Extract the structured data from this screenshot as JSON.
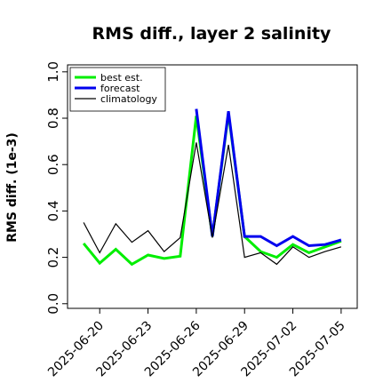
{
  "chart_data": {
    "type": "line",
    "title": "RMS diff., layer 2 salinity",
    "xlabel": "",
    "ylabel": "RMS diff. (1e-3)",
    "ylim": [
      -0.02,
      1.03
    ],
    "yticks": [
      0.0,
      0.2,
      0.4,
      0.6,
      0.8,
      1.0
    ],
    "yticklabels": [
      "0.0",
      "0.2",
      "0.4",
      "0.6",
      "0.8",
      "1.0"
    ],
    "xlim": [
      "2025-06-18",
      "2025-07-06"
    ],
    "xticks": [
      "2025-06-20",
      "2025-06-23",
      "2025-06-26",
      "2025-06-29",
      "2025-07-02",
      "2025-07-05"
    ],
    "xticklabels": [
      "2025-06-20",
      "2025-06-23",
      "2025-06-26",
      "2025-06-29",
      "2025-07-02",
      "2025-07-05"
    ],
    "highlight_tick": "2025-06-26",
    "highlight_color": "#228b22",
    "grid": false,
    "legend_position": "top-left",
    "x": [
      "2025-06-19",
      "2025-06-20",
      "2025-06-21",
      "2025-06-22",
      "2025-06-23",
      "2025-06-24",
      "2025-06-25",
      "2025-06-26",
      "2025-06-27",
      "2025-06-28",
      "2025-06-29",
      "2025-06-30",
      "2025-07-01",
      "2025-07-02",
      "2025-07-03",
      "2025-07-04",
      "2025-07-05"
    ],
    "series": [
      {
        "name": "best est.",
        "color": "#00ee00",
        "width": 3,
        "values": [
          0.26,
          0.175,
          0.235,
          0.17,
          0.21,
          0.195,
          0.205,
          0.81,
          0.29,
          0.82,
          0.29,
          0.225,
          0.2,
          0.255,
          0.22,
          0.245,
          0.27
        ]
      },
      {
        "name": "forecast",
        "color": "#0000ee",
        "width": 3,
        "values": [
          null,
          null,
          null,
          null,
          null,
          null,
          null,
          0.84,
          0.29,
          0.83,
          0.29,
          0.29,
          0.25,
          0.29,
          0.25,
          0.255,
          0.275
        ]
      },
      {
        "name": "climatology",
        "color": "#000000",
        "width": 1.2,
        "values": [
          0.35,
          0.22,
          0.345,
          0.265,
          0.315,
          0.225,
          0.285,
          0.695,
          0.285,
          0.685,
          0.2,
          0.22,
          0.17,
          0.245,
          0.2,
          0.225,
          0.245
        ]
      }
    ]
  }
}
